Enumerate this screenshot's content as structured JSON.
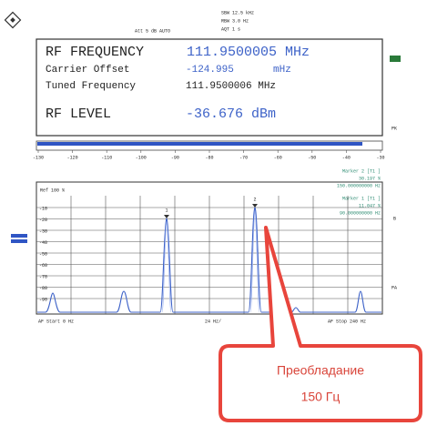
{
  "header": {
    "att": "Att  5 dB AUTO",
    "sbw": "SBW 12.5 kHz",
    "rbw": "RBW 3.0 Hz",
    "aqt": "AQT 1 s"
  },
  "readout": {
    "rf_frequency_label": "RF FREQUENCY",
    "rf_frequency_value": "111.9500005 MHz",
    "carrier_offset_label": "Carrier Offset",
    "carrier_offset_value": "-124.995",
    "carrier_offset_unit": "mHz",
    "tuned_frequency_label": "Tuned Frequency",
    "tuned_frequency_value": "111.9500006 MHz",
    "rf_level_label": "RF LEVEL",
    "rf_level_value": "-36.676 dBm"
  },
  "side": {
    "pk": "PK",
    "b": "B",
    "pa": "PA"
  },
  "level_scale": [
    "-130",
    "-120",
    "-110",
    "-100",
    "-90",
    "-80",
    "-70",
    "-60",
    "-50",
    "-40",
    "-30"
  ],
  "spectrum": {
    "ref": "Ref  100 %",
    "marker2": [
      "Marker 2 [T1 ]",
      "30.197 %",
      "150.000000000 Hz"
    ],
    "marker1": [
      "Marker 1 [T1 ]",
      "11.047 %",
      "90.000000000 Hz"
    ],
    "marker_ids": [
      "1",
      "2"
    ],
    "y_labels": [
      "-10",
      "-20",
      "-30",
      "-40",
      "-50",
      "-60",
      "-70",
      "-80",
      "-90"
    ],
    "start": "AF Start 0 Hz",
    "per_div": "24 Hz/",
    "stop": "AF Stop 240 Hz"
  },
  "callout": {
    "line1": "Преобладание",
    "line2": "150 Гц"
  }
}
